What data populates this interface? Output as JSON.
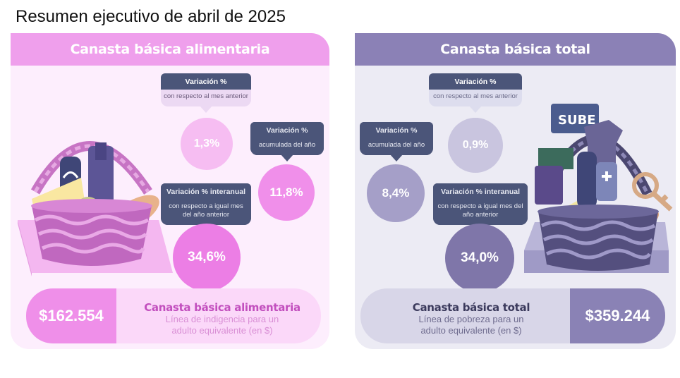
{
  "title": "Resumen ejecutivo de abril de 2025",
  "food": {
    "header": "Canasta básica alimentaria",
    "var_month": {
      "head": "Variación %",
      "body": "con respecto al mes anterior",
      "value": "1,3%"
    },
    "var_year": {
      "head": "Variación %",
      "body": "acumulada del año",
      "value": "11,8%"
    },
    "var_interannual": {
      "head": "Variación % interanual",
      "body": "con respecto a igual mes del año anterior",
      "value": "34,6%"
    },
    "amount": "$162.554",
    "footer_title": "Canasta básica alimentaria",
    "footer_sub": "Línea de indigencia para un adulto equivalente (en $)"
  },
  "total": {
    "header": "Canasta básica total",
    "var_month": {
      "head": "Variación %",
      "body": "con respecto al mes anterior",
      "value": "0,9%"
    },
    "var_year": {
      "head": "Variación %",
      "body": "acumulada del año",
      "value": "8,4%"
    },
    "var_interannual": {
      "head": "Variación % interanual",
      "body": "con respecto a igual mes del año anterior",
      "value": "34,0%"
    },
    "amount": "$359.244",
    "footer_title": "Canasta básica total",
    "footer_sub": "Línea de pobreza para un adulto equivalente (en $)",
    "card_label": "SUBE"
  },
  "colors": {
    "food_accent": "#ef9fec",
    "total_accent": "#8b81b6",
    "tag_dark": "#4b5579"
  }
}
